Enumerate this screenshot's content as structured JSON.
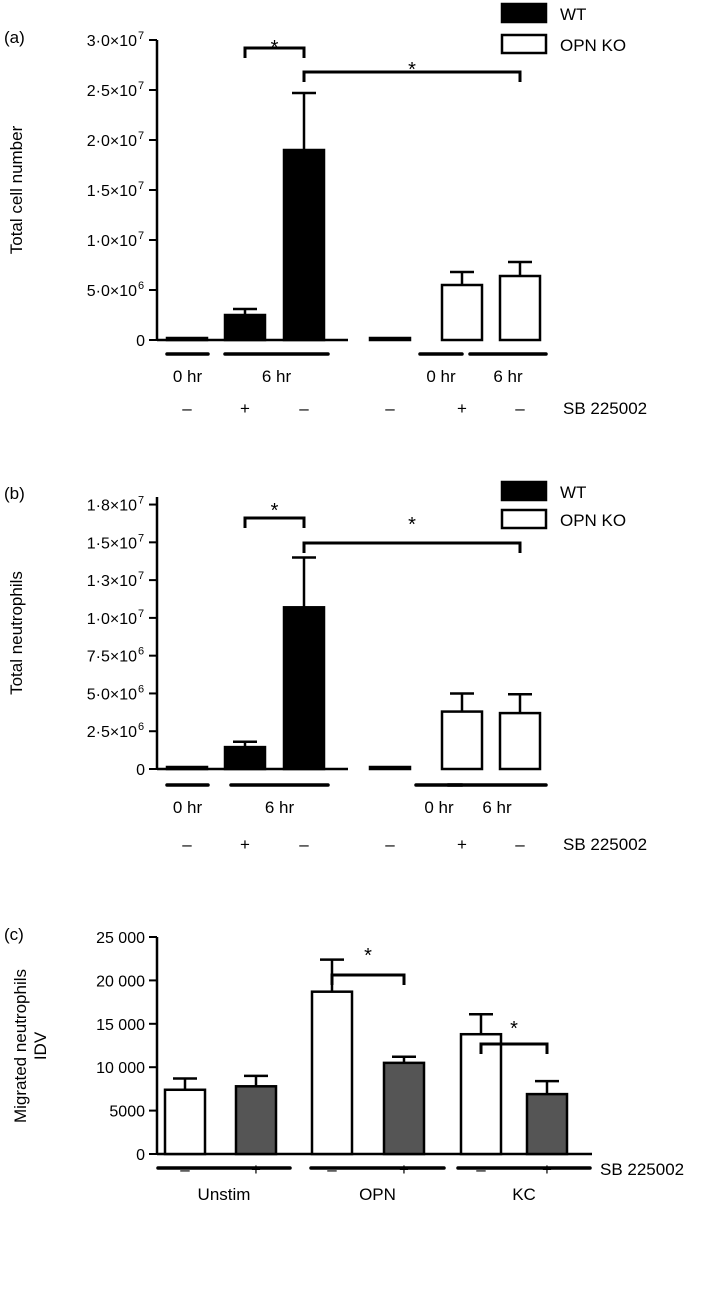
{
  "chart_data": [
    {
      "type": "bar",
      "panel_label": "(a)",
      "ylabel": "Total cell number",
      "ylim": [
        0,
        30000000
      ],
      "yticks": [
        {
          "value": 0,
          "label": "0"
        },
        {
          "value": 5000000,
          "label": "5·0×10",
          "exp": "6"
        },
        {
          "value": 10000000,
          "label": "1·0×10",
          "exp": "7"
        },
        {
          "value": 15000000,
          "label": "1·5×10",
          "exp": "7"
        },
        {
          "value": 20000000,
          "label": "2·0×10",
          "exp": "7"
        },
        {
          "value": 25000000,
          "label": "2·5×10",
          "exp": "7"
        },
        {
          "value": 30000000,
          "label": "3·0×10",
          "exp": "7"
        }
      ],
      "legend": [
        {
          "name": "WT",
          "color": "#000000"
        },
        {
          "name": "OPN KO",
          "color": "#ffffff"
        }
      ],
      "bars": [
        {
          "group": "WT",
          "time": "0 hr",
          "treatment": "–",
          "value": 150000,
          "error": 0,
          "color": "#000000"
        },
        {
          "group": "WT",
          "time": "6 hr",
          "treatment": "+",
          "value": 2500000,
          "error": 600000,
          "color": "#000000"
        },
        {
          "group": "WT",
          "time": "6 hr",
          "treatment": "–",
          "value": 19000000,
          "error": 5700000,
          "color": "#000000"
        },
        {
          "group": "OPN KO",
          "time": "0 hr",
          "treatment": "–",
          "value": 150000,
          "error": 0,
          "color": "#ffffff"
        },
        {
          "group": "OPN KO",
          "time": "6 hr",
          "treatment": "+",
          "value": 5500000,
          "error": 1300000,
          "color": "#ffffff"
        },
        {
          "group": "OPN KO",
          "time": "6 hr",
          "treatment": "–",
          "value": 6400000,
          "error": 1400000,
          "color": "#ffffff"
        }
      ],
      "time_labels": [
        {
          "label": "0 hr",
          "bars": [
            0
          ]
        },
        {
          "label": "6 hr",
          "bars": [
            1,
            2
          ]
        },
        {
          "label": "0 hr",
          "bars": [
            3
          ]
        },
        {
          "label": "6 hr",
          "bars": [
            4,
            5
          ]
        }
      ],
      "treatment_row_label": "SB 225002",
      "significance": [
        {
          "from": 1,
          "to": 2,
          "label": "*"
        },
        {
          "from": 2,
          "to": 5,
          "label": "*"
        }
      ]
    },
    {
      "type": "bar",
      "panel_label": "(b)",
      "ylabel": "Total neutrophils",
      "ylim": [
        0,
        18000000
      ],
      "yticks": [
        {
          "value": 0,
          "label": "0"
        },
        {
          "value": 2500000,
          "label": "2·5×10",
          "exp": "6"
        },
        {
          "value": 5000000,
          "label": "5·0×10",
          "exp": "6"
        },
        {
          "value": 7500000,
          "label": "7·5×10",
          "exp": "6"
        },
        {
          "value": 10000000,
          "label": "1·0×10",
          "exp": "7"
        },
        {
          "value": 12500000,
          "label": "1·3×10",
          "exp": "7"
        },
        {
          "value": 15000000,
          "label": "1·5×10",
          "exp": "7"
        },
        {
          "value": 17500000,
          "label": "1·8×10",
          "exp": "7"
        }
      ],
      "legend": [
        {
          "name": "WT",
          "color": "#000000"
        },
        {
          "name": "OPN KO",
          "color": "#ffffff"
        }
      ],
      "bars": [
        {
          "group": "WT",
          "time": "0 hr",
          "treatment": "–",
          "value": 80000,
          "error": 0,
          "color": "#000000"
        },
        {
          "group": "WT",
          "time": "6 hr",
          "treatment": "+",
          "value": 1450000,
          "error": 350000,
          "color": "#000000"
        },
        {
          "group": "WT",
          "time": "6 hr",
          "treatment": "–",
          "value": 10700000,
          "error": 3300000,
          "color": "#000000"
        },
        {
          "group": "OPN KO",
          "time": "0 hr",
          "treatment": "–",
          "value": 80000,
          "error": 0,
          "color": "#ffffff"
        },
        {
          "group": "OPN KO",
          "time": "6 hr",
          "treatment": "+",
          "value": 3800000,
          "error": 1200000,
          "color": "#ffffff"
        },
        {
          "group": "OPN KO",
          "time": "6 hr",
          "treatment": "–",
          "value": 3700000,
          "error": 1250000,
          "color": "#ffffff"
        }
      ],
      "time_labels": [
        {
          "label": "0 hr",
          "bars": [
            0
          ]
        },
        {
          "label": "6 hr",
          "bars": [
            1,
            2
          ]
        },
        {
          "label": "0 hr",
          "bars": [
            3
          ]
        },
        {
          "label": "6 hr",
          "bars": [
            4,
            5
          ]
        }
      ],
      "treatment_row_label": "SB 225002",
      "significance": [
        {
          "from": 1,
          "to": 2,
          "label": "*"
        },
        {
          "from": 2,
          "to": 5,
          "label": "*"
        }
      ]
    },
    {
      "type": "bar",
      "panel_label": "(c)",
      "ylabel_lines": [
        "Migrated neutrophils",
        "IDV"
      ],
      "ylim": [
        0,
        25000
      ],
      "yticks": [
        {
          "value": 0,
          "label": "0"
        },
        {
          "value": 5000,
          "label": "5000"
        },
        {
          "value": 10000,
          "label": "10 000"
        },
        {
          "value": 15000,
          "label": "15 000"
        },
        {
          "value": 20000,
          "label": "20 000"
        },
        {
          "value": 25000,
          "label": "25 000"
        }
      ],
      "bars": [
        {
          "group": "Unstim",
          "treatment": "–",
          "value": 7400,
          "error": 1300,
          "color": "#ffffff"
        },
        {
          "group": "Unstim",
          "treatment": "+",
          "value": 7800,
          "error": 1200,
          "color": "#555555"
        },
        {
          "group": "OPN",
          "treatment": "–",
          "value": 18700,
          "error": 3700,
          "color": "#ffffff"
        },
        {
          "group": "OPN",
          "treatment": "+",
          "value": 10500,
          "error": 700,
          "color": "#555555"
        },
        {
          "group": "KC",
          "treatment": "–",
          "value": 13800,
          "error": 2300,
          "color": "#ffffff"
        },
        {
          "group": "KC",
          "treatment": "+",
          "value": 6900,
          "error": 1500,
          "color": "#555555"
        }
      ],
      "group_labels": [
        {
          "label": "Unstim",
          "bars": [
            0,
            1
          ]
        },
        {
          "label": "OPN",
          "bars": [
            2,
            3
          ]
        },
        {
          "label": "KC",
          "bars": [
            4,
            5
          ]
        }
      ],
      "treatment_row_label": "SB 225002",
      "significance": [
        {
          "from": 2,
          "to": 3,
          "label": "*"
        },
        {
          "from": 4,
          "to": 5,
          "label": "*"
        }
      ]
    }
  ]
}
